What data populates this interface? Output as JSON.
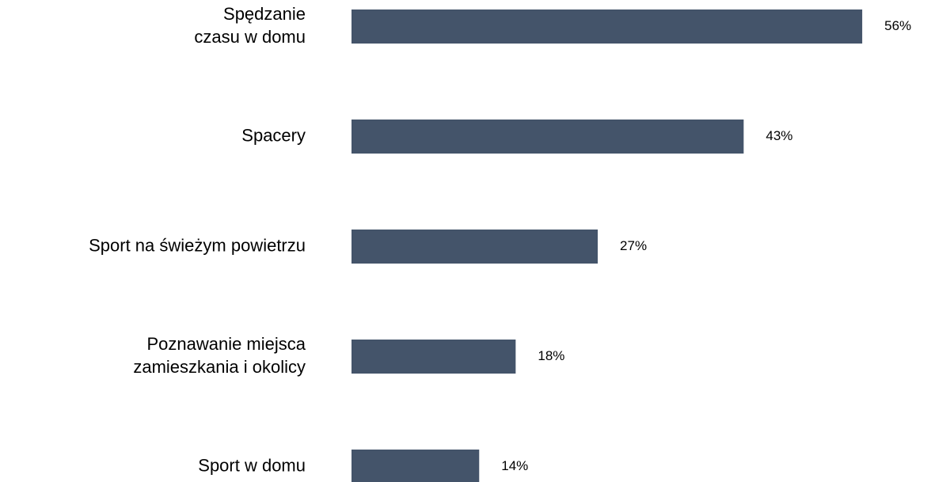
{
  "chart_data": {
    "type": "bar",
    "orientation": "horizontal",
    "categories": [
      "Spędzanie\nczasu w domu",
      "Spacery",
      "Sport na świeżym powietrzu",
      "Poznawanie miejsca\nzamieszkania i okolicy",
      "Sport w domu"
    ],
    "values": [
      56,
      43,
      27,
      18,
      14
    ],
    "value_labels": [
      "56%",
      "43%",
      "27%",
      "18%",
      "14%"
    ],
    "color": "#44546a"
  }
}
